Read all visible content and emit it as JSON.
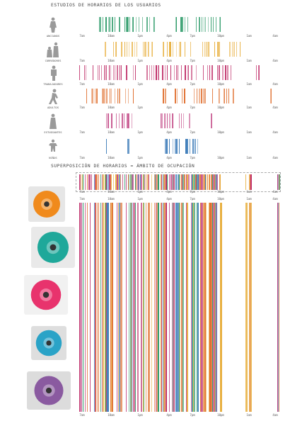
{
  "title_top": "ESTUDIOS DE HORARIOS DE LOS USUARIOS",
  "title_mid": "SUPERPOSICIÓN DE HORARIOS = ÁMBITO DE OCUPACIÓN",
  "ticks": [
    "7am",
    "10am",
    "1pm",
    "4pm",
    "7pm",
    "10pm",
    "1am",
    "4am"
  ],
  "groups": [
    {
      "label": "ANCIANOS",
      "color": "#2e9b6a"
    },
    {
      "label": "CORREDORES",
      "color": "#e8b040"
    },
    {
      "label": "TRABAJADORES",
      "color": "#c0306a"
    },
    {
      "label": "ADULTOS",
      "color": "#e07030"
    },
    {
      "label": "ESTUDIANTES",
      "color": "#c04080"
    },
    {
      "label": "NIÑOS",
      "color": "#3a7ab8"
    }
  ],
  "spools": [
    {
      "name": "orange-spool",
      "color": "#f08a1c",
      "bg": "#e6e6e6"
    },
    {
      "name": "teal-spool",
      "color": "#1fa89a",
      "bg": "#e9e9e9"
    },
    {
      "name": "pink-spool",
      "color": "#e8336d",
      "bg": "#f1f1f1"
    },
    {
      "name": "blue-spool",
      "color": "#2aa3c7",
      "bg": "#dedede"
    },
    {
      "name": "purple-spool",
      "color": "#8a5aa0",
      "bg": "#dcdcdc"
    }
  ]
}
